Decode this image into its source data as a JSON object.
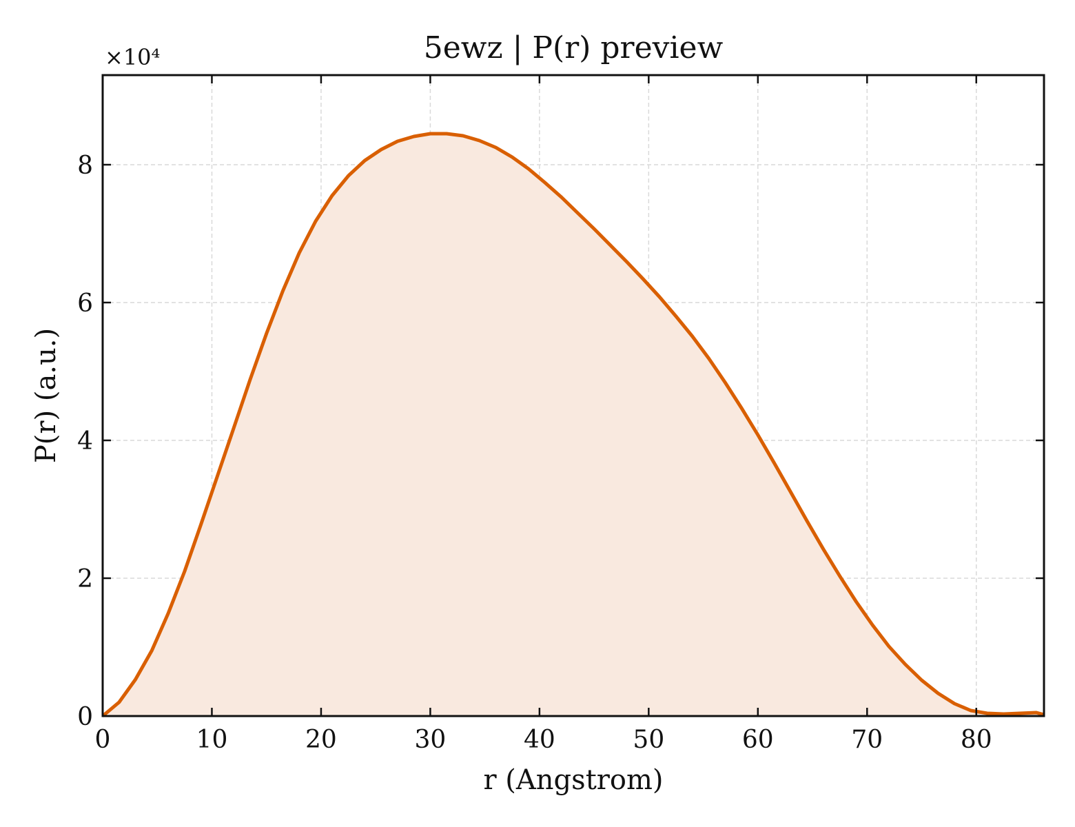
{
  "chart_data": {
    "type": "area",
    "title": "5ewz | P(r) preview",
    "xlabel": "r (Angstrom)",
    "ylabel": "P(r) (a.u.)",
    "y_offset_label": "×10⁴",
    "xlim": [
      0,
      86.2
    ],
    "ylim": [
      0,
      9.3
    ],
    "x_ticks": [
      0,
      10,
      20,
      30,
      40,
      50,
      60,
      70,
      80
    ],
    "y_ticks": [
      0,
      2,
      4,
      6,
      8
    ],
    "grid": true,
    "line_color": "#d95f02",
    "fill_color": "#f9e9df",
    "series": [
      {
        "x": [
          0,
          1.5,
          3,
          4.5,
          6,
          7.5,
          9,
          10.5,
          12,
          13.5,
          15,
          16.5,
          18,
          19.5,
          21,
          22.5,
          24,
          25.5,
          27,
          28.5,
          30,
          31.5,
          33,
          34.5,
          36,
          37.5,
          39,
          40.5,
          42,
          43.5,
          45,
          46.5,
          48,
          49.5,
          51,
          52.5,
          54,
          55.5,
          57,
          58.5,
          60,
          61.5,
          63,
          64.5,
          66,
          67.5,
          69,
          70.5,
          72,
          73.5,
          75,
          76.5,
          78,
          79.5,
          81,
          82.5,
          84,
          85.5,
          86.2
        ],
        "y": [
          0.0,
          0.2,
          0.53,
          0.95,
          1.49,
          2.1,
          2.78,
          3.48,
          4.18,
          4.88,
          5.55,
          6.17,
          6.72,
          7.18,
          7.55,
          7.84,
          8.06,
          8.22,
          8.34,
          8.41,
          8.45,
          8.45,
          8.42,
          8.35,
          8.25,
          8.11,
          7.94,
          7.74,
          7.53,
          7.3,
          7.07,
          6.83,
          6.59,
          6.34,
          6.08,
          5.8,
          5.51,
          5.19,
          4.84,
          4.47,
          4.08,
          3.67,
          3.25,
          2.83,
          2.42,
          2.03,
          1.66,
          1.32,
          1.01,
          0.75,
          0.52,
          0.33,
          0.18,
          0.08,
          0.04,
          0.03,
          0.04,
          0.05,
          0.02
        ]
      }
    ]
  }
}
